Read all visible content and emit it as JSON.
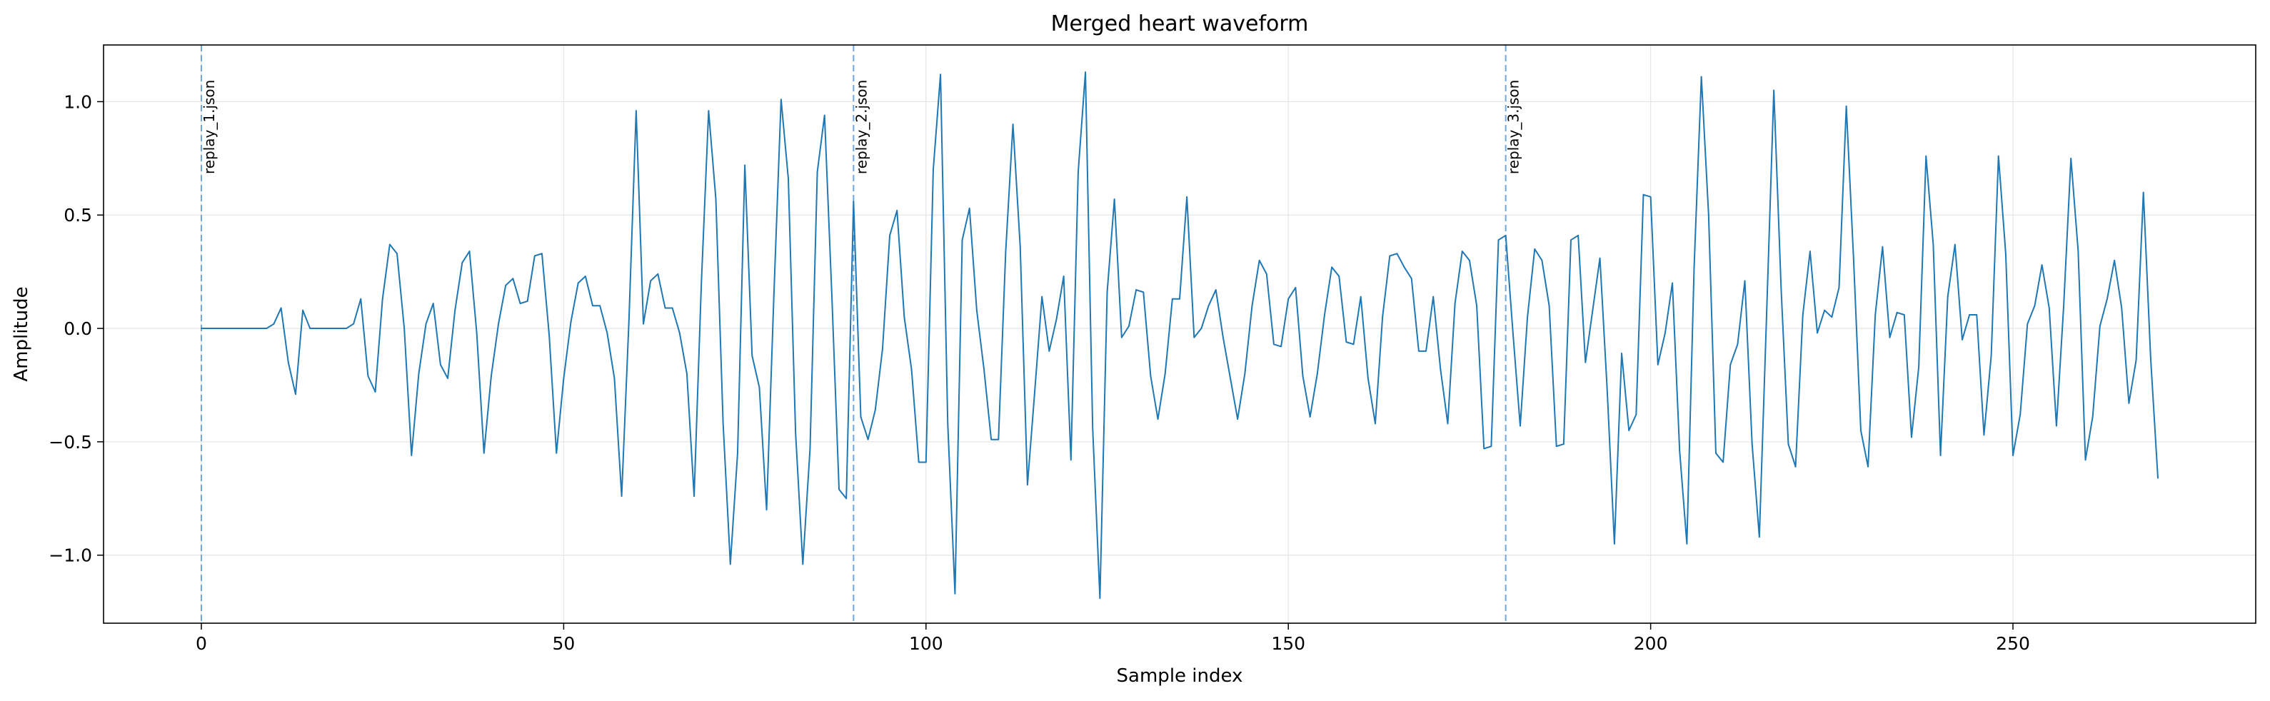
{
  "chart_data": {
    "type": "line",
    "title": "Merged heart waveform",
    "xlabel": "Sample index",
    "ylabel": "Amplitude",
    "xlim": [
      -13.5,
      283.5
    ],
    "ylim": [
      -1.3,
      1.25
    ],
    "x_ticks": [
      0,
      50,
      100,
      150,
      200,
      250
    ],
    "y_ticks": [
      -1.0,
      -0.5,
      0.0,
      0.5,
      1.0
    ],
    "x_tick_labels": [
      "0",
      "50",
      "100",
      "150",
      "200",
      "250"
    ],
    "y_tick_labels": [
      "−1.0",
      "−0.5",
      "0.0",
      "0.5",
      "1.0"
    ],
    "grid": true,
    "line_color": "#1f77b4",
    "marker_color": "#1f77b4",
    "series": [
      {
        "x_start": 0,
        "x_step": 1,
        "values": [
          0.0,
          0.0,
          0.0,
          0.0,
          0.0,
          0.0,
          0.0,
          0.0,
          0.0,
          0.0,
          0.02,
          0.09,
          -0.15,
          -0.29,
          0.08,
          0.0,
          0.0,
          0.0,
          0.0,
          0.0,
          0.0,
          0.02,
          0.13,
          -0.21,
          -0.28,
          0.13,
          0.37,
          0.33,
          0.0,
          -0.56,
          -0.2,
          0.02,
          0.11,
          -0.16,
          -0.22,
          0.08,
          0.29,
          0.34,
          -0.02,
          -0.55,
          -0.21,
          0.02,
          0.19,
          0.22,
          0.11,
          0.12,
          0.32,
          0.33,
          -0.03,
          -0.55,
          -0.22,
          0.03,
          0.2,
          0.23,
          0.1,
          0.1,
          -0.02,
          -0.22,
          -0.74,
          0.03,
          0.96,
          0.02,
          0.21,
          0.24,
          0.09,
          0.09,
          -0.02,
          -0.2,
          -0.74,
          0.2,
          0.96,
          0.57,
          -0.42,
          -1.04,
          -0.55,
          0.72,
          -0.12,
          -0.26,
          -0.8,
          0.14,
          1.01,
          0.66,
          -0.46,
          -1.04,
          -0.53,
          0.69,
          0.94,
          0.15,
          -0.71,
          -0.75,
          0.56,
          -0.39,
          -0.49,
          -0.36,
          -0.09,
          0.41,
          0.52,
          0.05,
          -0.18,
          -0.59,
          -0.59,
          0.7,
          1.12,
          -0.42,
          -1.17,
          0.39,
          0.53,
          0.08,
          -0.18,
          -0.49,
          -0.49,
          0.34,
          0.9,
          0.36,
          -0.69,
          -0.28,
          0.14,
          -0.1,
          0.04,
          0.23,
          -0.58,
          0.69,
          1.13,
          -0.44,
          -1.19,
          0.16,
          0.57,
          -0.04,
          0.01,
          0.17,
          0.16,
          -0.21,
          -0.4,
          -0.2,
          0.13,
          0.13,
          0.58,
          -0.04,
          0.0,
          0.1,
          0.17,
          -0.04,
          -0.22,
          -0.4,
          -0.2,
          0.1,
          0.3,
          0.24,
          -0.07,
          -0.08,
          0.13,
          0.18,
          -0.21,
          -0.39,
          -0.2,
          0.06,
          0.27,
          0.23,
          -0.06,
          -0.07,
          0.14,
          -0.22,
          -0.42,
          0.05,
          0.32,
          0.33,
          0.27,
          0.22,
          -0.1,
          -0.1,
          0.14,
          -0.18,
          -0.42,
          0.11,
          0.34,
          0.3,
          0.1,
          -0.53,
          -0.52,
          0.39,
          0.41,
          -0.02,
          -0.43,
          0.05,
          0.35,
          0.3,
          0.1,
          -0.52,
          -0.51,
          0.39,
          0.41,
          -0.15,
          0.08,
          0.31,
          -0.27,
          -0.95,
          -0.11,
          -0.45,
          -0.38,
          0.59,
          0.58,
          -0.16,
          -0.02,
          0.2,
          -0.54,
          -0.95,
          0.27,
          1.11,
          0.5,
          -0.55,
          -0.59,
          -0.16,
          -0.07,
          0.21,
          -0.51,
          -0.92,
          0.06,
          1.05,
          0.18,
          -0.51,
          -0.61,
          0.06,
          0.34,
          -0.02,
          0.08,
          0.05,
          0.18,
          0.98,
          0.31,
          -0.45,
          -0.61,
          0.06,
          0.36,
          -0.04,
          0.07,
          0.06,
          -0.48,
          -0.17,
          0.76,
          0.37,
          -0.56,
          0.14,
          0.37,
          -0.05,
          0.06,
          0.06,
          -0.47,
          -0.12,
          0.76,
          0.33,
          -0.56,
          -0.38,
          0.02,
          0.1,
          0.28,
          0.09,
          -0.43,
          0.1,
          0.75,
          0.34,
          -0.58,
          -0.39,
          0.01,
          0.13,
          0.3,
          0.09,
          -0.33,
          -0.14,
          0.6,
          -0.13,
          -0.66
        ]
      }
    ],
    "annotations": [
      {
        "x": 0,
        "label": "replay_1.json"
      },
      {
        "x": 90,
        "label": "replay_2.json"
      },
      {
        "x": 180,
        "label": "replay_3.json"
      }
    ],
    "annotation_color": "#6fa8dc"
  }
}
